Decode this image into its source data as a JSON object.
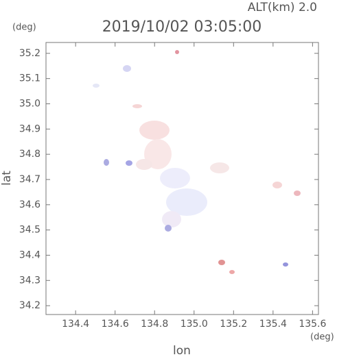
{
  "chart_data": {
    "type": "map",
    "title": "2019/10/02 03:05:00",
    "annotation": "ALT(km) 2.0",
    "y_unit": "(deg)",
    "x_unit": "(deg)",
    "xlabel": "lon",
    "ylabel": "lat",
    "xlim": [
      134.25,
      135.63
    ],
    "ylim": [
      34.165,
      35.243
    ],
    "xticks": [
      134.4,
      134.6,
      134.8,
      {
        "value": 135.0,
        "label": "135.0"
      },
      135.2,
      135.4,
      135.6
    ],
    "yticks": [
      34.2,
      34.3,
      34.4,
      34.5,
      34.6,
      34.7,
      34.8,
      34.9,
      {
        "value": 35.0,
        "label": "35.0"
      },
      35.1,
      35.2
    ]
  }
}
